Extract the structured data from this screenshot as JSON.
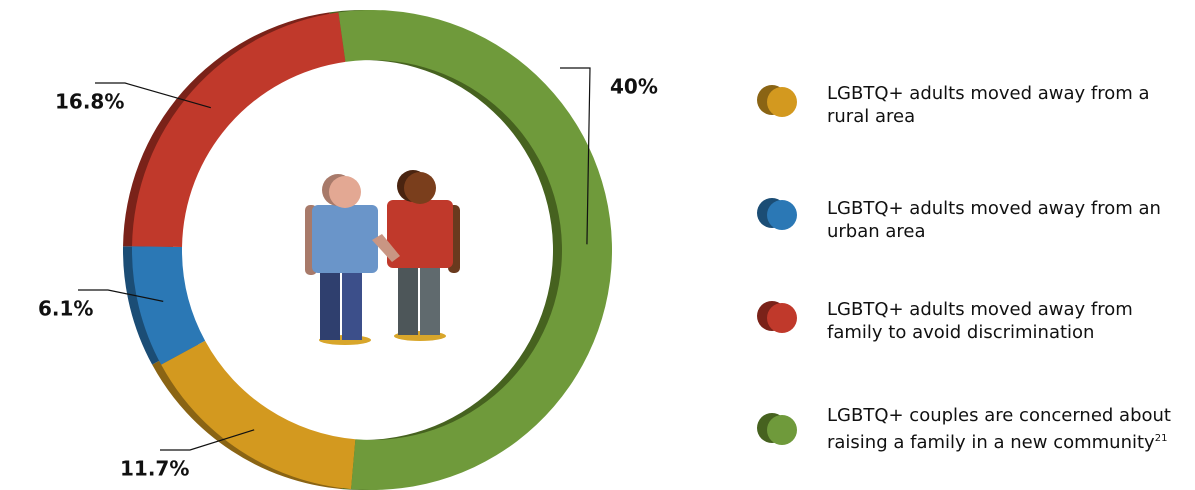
{
  "chart_data": {
    "type": "donut",
    "categories": [
      "LGBTQ+ adults moved away from a rural area",
      "LGBTQ+ adults moved away from an urban area",
      "LGBTQ+ adults moved away from family to avoid discrimination",
      "LGBTQ+ couples are concerned about raising a family in a new community"
    ],
    "values": [
      11.7,
      6.1,
      16.8,
      40
    ],
    "value_labels": [
      "11.7%",
      "6.1%",
      "16.8%",
      "40%"
    ],
    "colors": [
      "#d3991f",
      "#2b78b5",
      "#c0392b",
      "#6f9a3b"
    ],
    "shadow_colors": [
      "#8a6414",
      "#1b4d75",
      "#7a2219",
      "#46621f"
    ],
    "footnote_mark": "21",
    "legend": "right"
  }
}
